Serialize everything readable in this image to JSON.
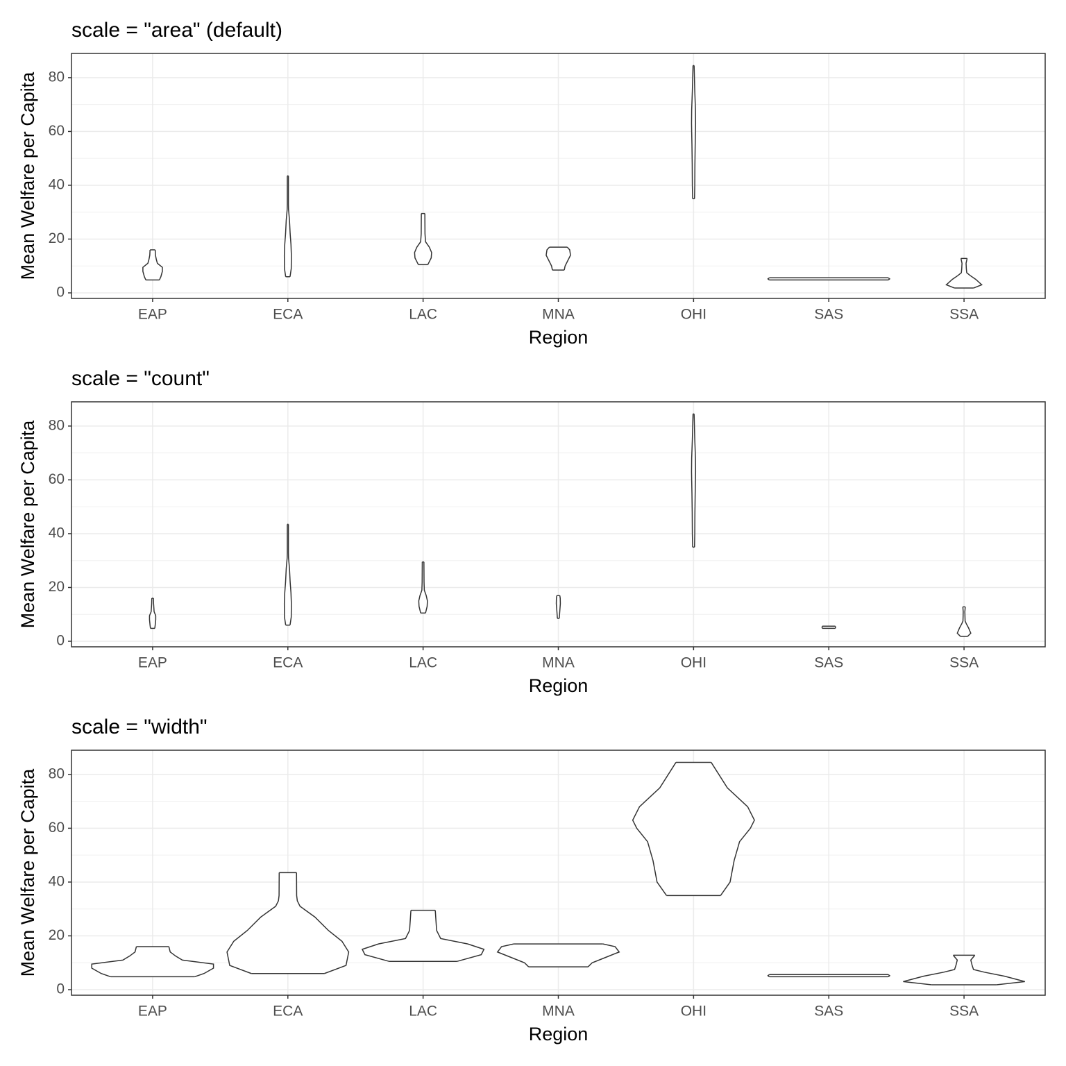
{
  "chart_data": [
    {
      "type": "violin",
      "title": "scale = \"area\" (default)",
      "x_label": "Region",
      "y_label": "Mean Welfare per Capita",
      "categories": [
        "EAP",
        "ECA",
        "LAC",
        "MNA",
        "OHI",
        "SAS",
        "SSA"
      ],
      "ylim": [
        -2.06,
        89.0
      ],
      "yticks": [
        0,
        20,
        40,
        60,
        80
      ],
      "minor_yticks": [
        10,
        30,
        50,
        70
      ],
      "grid": true,
      "color": "#333333",
      "violins": [
        {
          "y": [
            4.8,
            6,
            8,
            9.5,
            11,
            12.5,
            14,
            16
          ],
          "half_width": [
            0.05,
            0.061,
            0.072,
            0.072,
            0.035,
            0.027,
            0.021,
            0.019
          ]
        },
        {
          "y": [
            6,
            9,
            14,
            18,
            22,
            27,
            31,
            33,
            35,
            43.5
          ],
          "half_width": [
            0.016,
            0.025,
            0.026,
            0.023,
            0.017,
            0.012,
            0.005,
            0.004,
            0.004,
            0.004
          ]
        },
        {
          "y": [
            10.5,
            13,
            15,
            17,
            19,
            22,
            29.5
          ],
          "half_width": [
            0.035,
            0.06,
            0.063,
            0.046,
            0.018,
            0.014,
            0.013
          ]
        },
        {
          "y": [
            8.5,
            10,
            12,
            14,
            16,
            17
          ],
          "half_width": [
            0.044,
            0.05,
            0.07,
            0.09,
            0.084,
            0.066
          ]
        },
        {
          "y": [
            35,
            40,
            48,
            55,
            60,
            63,
            68,
            75,
            84.5
          ],
          "half_width": [
            0.007,
            0.009,
            0.01,
            0.012,
            0.014,
            0.015,
            0.014,
            0.009,
            0.004
          ]
        },
        {
          "y": [
            4.8,
            5.2,
            5.6
          ],
          "half_width": [
            0.44,
            0.45,
            0.44
          ]
        },
        {
          "y": [
            1.8,
            3,
            5,
            6.5,
            7.5,
            9,
            11,
            12.8
          ],
          "half_width": [
            0.07,
            0.131,
            0.087,
            0.044,
            0.02,
            0.017,
            0.015,
            0.023
          ]
        }
      ]
    },
    {
      "type": "violin",
      "title": "scale = \"count\"",
      "x_label": "Region",
      "y_label": "Mean Welfare per Capita",
      "categories": [
        "EAP",
        "ECA",
        "LAC",
        "MNA",
        "OHI",
        "SAS",
        "SSA"
      ],
      "ylim": [
        -2.06,
        89.0
      ],
      "yticks": [
        0,
        20,
        40,
        60,
        80
      ],
      "minor_yticks": [
        10,
        30,
        50,
        70
      ],
      "grid": true,
      "color": "#333333",
      "violins": [
        {
          "y": [
            4.8,
            6,
            8,
            9.5,
            11,
            12.5,
            14,
            16
          ],
          "half_width": [
            0.016,
            0.019,
            0.023,
            0.023,
            0.011,
            0.009,
            0.007,
            0.006
          ]
        },
        {
          "y": [
            6,
            9,
            14,
            18,
            22,
            27,
            31,
            33,
            35,
            43.5
          ],
          "half_width": [
            0.016,
            0.025,
            0.026,
            0.023,
            0.017,
            0.012,
            0.005,
            0.004,
            0.004,
            0.004
          ]
        },
        {
          "y": [
            10.5,
            13,
            15,
            17,
            19,
            22,
            29.5
          ],
          "half_width": [
            0.018,
            0.03,
            0.032,
            0.023,
            0.009,
            0.007,
            0.006
          ]
        },
        {
          "y": [
            8.5,
            10,
            12,
            14,
            16,
            17
          ],
          "half_width": [
            0.007,
            0.009,
            0.012,
            0.015,
            0.014,
            0.011
          ]
        },
        {
          "y": [
            35,
            40,
            48,
            55,
            60,
            63,
            68,
            75,
            84.5
          ],
          "half_width": [
            0.007,
            0.009,
            0.01,
            0.012,
            0.014,
            0.015,
            0.014,
            0.009,
            0.004
          ]
        },
        {
          "y": [
            4.8,
            5.2,
            5.6
          ],
          "half_width": [
            0.048,
            0.05,
            0.048
          ]
        },
        {
          "y": [
            1.8,
            3,
            5,
            6.5,
            7.5,
            9,
            11,
            12.8
          ],
          "half_width": [
            0.026,
            0.05,
            0.033,
            0.017,
            0.008,
            0.007,
            0.006,
            0.009
          ]
        }
      ]
    },
    {
      "type": "violin",
      "title": "scale = \"width\"",
      "x_label": "Region",
      "y_label": "Mean Welfare per Capita",
      "categories": [
        "EAP",
        "ECA",
        "LAC",
        "MNA",
        "OHI",
        "SAS",
        "SSA"
      ],
      "ylim": [
        -2.06,
        89.0
      ],
      "yticks": [
        0,
        20,
        40,
        60,
        80
      ],
      "minor_yticks": [
        10,
        30,
        50,
        70
      ],
      "grid": true,
      "color": "#333333",
      "violins": [
        {
          "y": [
            4.8,
            6,
            8,
            9.5,
            11,
            12.5,
            14,
            16
          ],
          "half_width": [
            0.31,
            0.38,
            0.45,
            0.45,
            0.22,
            0.17,
            0.13,
            0.12
          ]
        },
        {
          "y": [
            6,
            9,
            14,
            18,
            22,
            27,
            31,
            33,
            35,
            43.5
          ],
          "half_width": [
            0.27,
            0.43,
            0.45,
            0.4,
            0.3,
            0.2,
            0.09,
            0.07,
            0.065,
            0.064
          ]
        },
        {
          "y": [
            10.5,
            13,
            15,
            17,
            19,
            22,
            29.5
          ],
          "half_width": [
            0.25,
            0.43,
            0.45,
            0.33,
            0.13,
            0.1,
            0.09
          ]
        },
        {
          "y": [
            8.5,
            10,
            12,
            14,
            16,
            17
          ],
          "half_width": [
            0.22,
            0.25,
            0.35,
            0.45,
            0.42,
            0.33
          ]
        },
        {
          "y": [
            35,
            40,
            48,
            55,
            60,
            63,
            68,
            75,
            84.5
          ],
          "half_width": [
            0.2,
            0.27,
            0.3,
            0.34,
            0.42,
            0.45,
            0.4,
            0.25,
            0.13
          ]
        },
        {
          "y": [
            4.8,
            5.2,
            5.6
          ],
          "half_width": [
            0.44,
            0.45,
            0.44
          ]
        },
        {
          "y": [
            1.8,
            3,
            5,
            6.5,
            7.5,
            9,
            11,
            12.8
          ],
          "half_width": [
            0.24,
            0.45,
            0.3,
            0.15,
            0.07,
            0.06,
            0.05,
            0.08
          ]
        }
      ]
    }
  ]
}
